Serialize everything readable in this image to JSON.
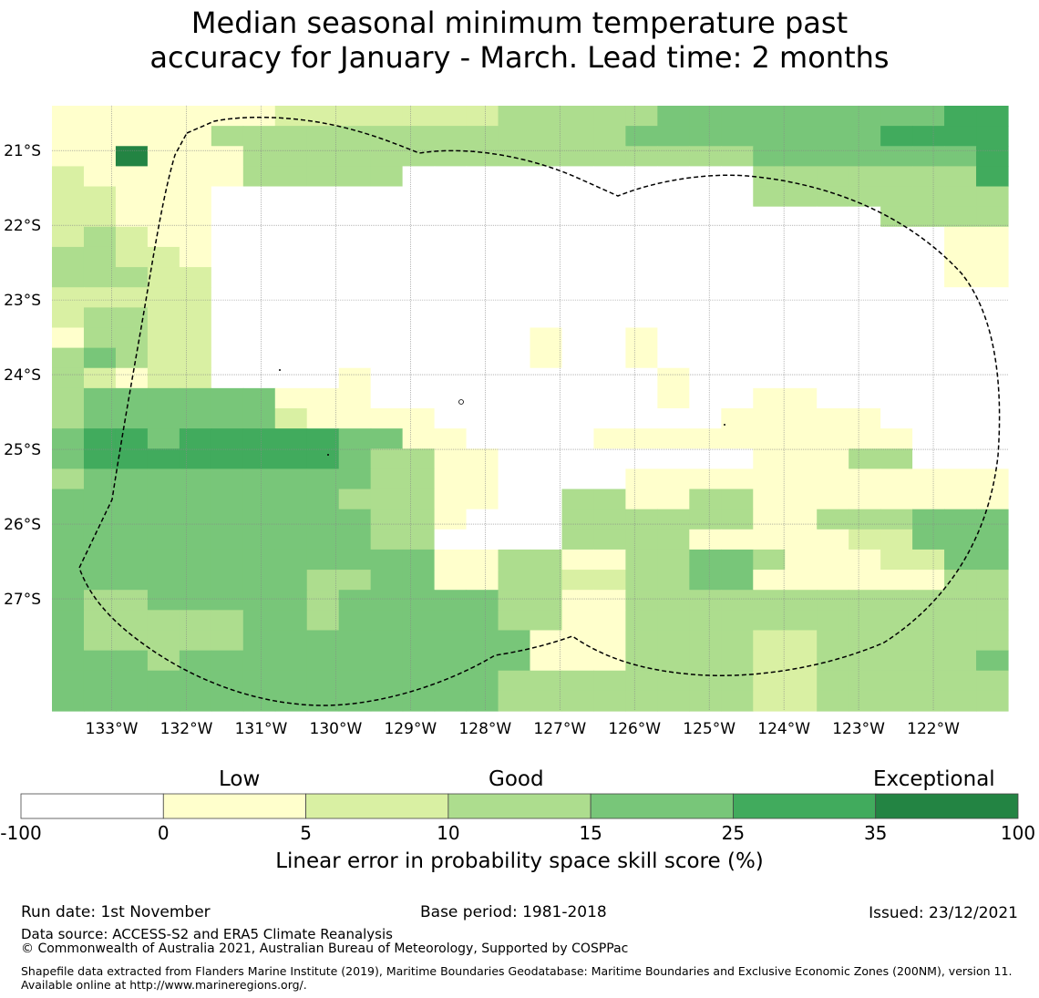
{
  "title": {
    "line1": "Median seasonal minimum temperature past",
    "line2": "accuracy for January - March. Lead time: 2 months"
  },
  "colors": {
    "bin_colors": [
      "#ffffff",
      "#ffffcc",
      "#d9f0a3",
      "#addd8e",
      "#78c679",
      "#41ab5d",
      "#238443"
    ],
    "eez_line": "#000000",
    "grid": "#888888"
  },
  "chart_data": {
    "type": "heatmap",
    "title": "Median seasonal minimum temperature past accuracy for January - March. Lead time: 2 months",
    "x_range_deg": [
      -133.8,
      -121.0
    ],
    "y_range_deg": [
      -28.5,
      -20.4
    ],
    "x_ticks": [
      "133°W",
      "132°W",
      "131°W",
      "130°W",
      "129°W",
      "128°W",
      "127°W",
      "126°W",
      "125°W",
      "124°W",
      "123°W",
      "122°W"
    ],
    "y_ticks": [
      "21°S",
      "22°S",
      "23°S",
      "24°S",
      "25°S",
      "26°S",
      "27°S"
    ],
    "legend_bins": [
      "-100 to 0",
      "0 to 5",
      "5 to 10",
      "10 to 15",
      "15 to 25",
      "25 to 35",
      "35 to 100"
    ],
    "cell_rows_north_to_south": [
      "111111122222223333344444444455",
      "111113333333333333444444445555",
      "116111333333333333333344444445",
      "211111333330000000000033333335",
      "221110000000000000000033333333",
      "221110000000000000000000003333",
      "232110000000000000000000000011",
      "332210000000000000000000000011",
      "333220000000000000000000000011",
      "222220000000000000000000000000",
      "233220000000000000000000000000",
      "133220000000000100100000000000",
      "343220000000000100100000000000",
      "321220000100000000010000000000",
      "344444411100000000010011000000",
      "344444421111000000000111110000",
      "455455555441100001111111111000",
      "455555555433110000000011133000",
      "344444444433110000111111111111",
      "444444444333110033113311111111",
      "444444444433100033333311333444",
      "444444444433000033331111122444",
      "444444444444113311334431112244",
      "444444443344113322334411111133",
      "433444443444443311333333333333",
      "433333443444443311333333333333",
      "433333444444444111333322333333",
      "444344444444444111333322333334",
      "444444444444443333333322333333",
      "444444444444443333333322333333"
    ],
    "colorbar_ticks": [
      "-100",
      "0",
      "5",
      "10",
      "15",
      "25",
      "35",
      "100"
    ],
    "colorbar_categories": [
      "Low",
      "Good",
      "Exceptional"
    ],
    "colorbar_label": "Linear error in probability space skill score (%)"
  },
  "footer": {
    "run_date": "Run date: 1st November",
    "base_period": "Base period: 1981-2018",
    "issued": "Issued: 23/12/2021",
    "data_source": "Data source: ACCESS-S2 and ERA5 Climate Reanalysis",
    "copyright": "© Commonwealth of Australia 2021, Australian Bureau of Meteorology, Supported by COSPPac",
    "shapefile_note": "Shapefile data extracted from Flanders Marine Institute (2019), Maritime Boundaries Geodatabase: Maritime Boundaries and Exclusive Economic Zones (200NM), version 11. Available online at http://www.marineregions.org/."
  }
}
